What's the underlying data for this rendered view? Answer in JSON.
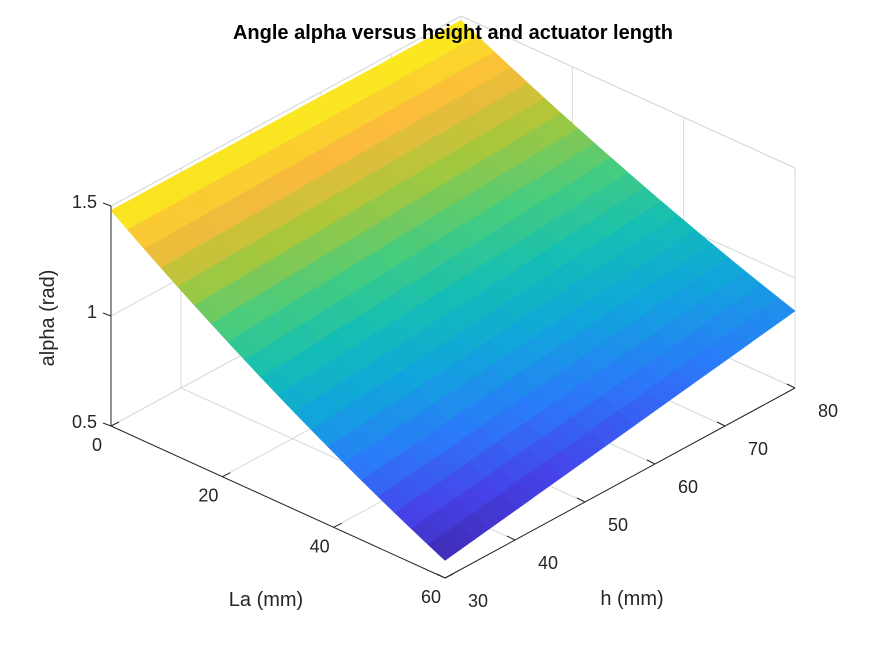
{
  "chart_data": {
    "type": "surface",
    "title": "Angle alpha versus height and actuator length",
    "xlabel": "La (mm)",
    "ylabel": "h (mm)",
    "zlabel": "alpha (rad)",
    "x_ticks": [
      "0",
      "20",
      "40",
      "60"
    ],
    "y_ticks": [
      "30",
      "40",
      "50",
      "60",
      "70",
      "80"
    ],
    "z_ticks": [
      "0.5",
      "1",
      "1.5"
    ],
    "xlim": [
      0,
      60
    ],
    "ylim": [
      30,
      80
    ],
    "zlim": [
      0.5,
      1.5
    ],
    "grid": true,
    "colormap": "parula",
    "bands": 20,
    "corner_values": [
      {
        "La": 0,
        "h": 30,
        "alpha": 1.48
      },
      {
        "La": 0,
        "h": 80,
        "alpha": 1.48
      },
      {
        "La": 60,
        "h": 30,
        "alpha": 0.58
      },
      {
        "La": 60,
        "h": 80,
        "alpha": 0.85
      }
    ]
  }
}
